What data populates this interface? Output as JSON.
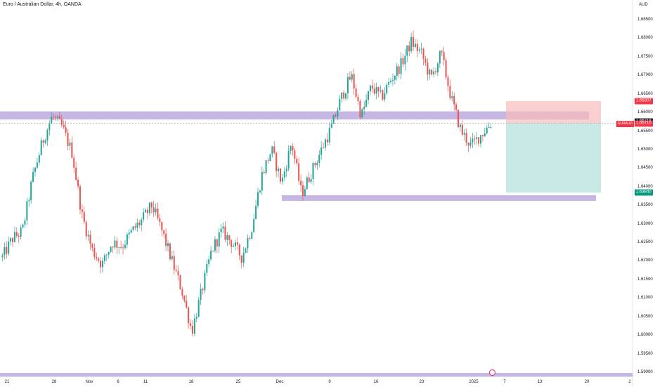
{
  "title": "Euro / Australian Dollar, 4h, OANDA",
  "currency": "AUD",
  "symbol": "EURAUD",
  "timer": "02:24:49",
  "price_ticks": [
    "1.68500",
    "1.68000",
    "1.67500",
    "1.67000",
    "1.66500",
    "1.66000",
    "1.65500",
    "1.65000",
    "1.64500",
    "1.64000",
    "1.63500",
    "1.63000",
    "1.62500",
    "1.62000",
    "1.61500",
    "1.61000",
    "1.60500",
    "1.60000",
    "1.59500",
    "1.59000"
  ],
  "badges": {
    "stop": "1.66307",
    "last": "1.65718",
    "entry": "1.65710",
    "target": "1.63840"
  },
  "time_ticks": [
    "21",
    "28",
    "Nov",
    "6",
    "11",
    "18",
    "25",
    "Dec",
    "9",
    "16",
    "23",
    "2025",
    "7",
    "13",
    "20",
    "2"
  ],
  "colors": {
    "up": "#26a69a",
    "down": "#ef5350",
    "zone": "#b39ddb",
    "stop_zone": "#f8bbbc",
    "target_zone": "#b2dfdb",
    "badge_red": "#f23645",
    "badge_teal": "#089981",
    "badge_dark": "#131722"
  },
  "chart_data": {
    "type": "candlestick",
    "title": "Euro / Australian Dollar, 4h, OANDA",
    "y_unit": "AUD",
    "ylim": [
      1.5885,
      1.6895
    ],
    "grid": false,
    "path": [
      [
        "21",
        1.621
      ],
      [
        "23",
        1.626
      ],
      [
        "25",
        1.628
      ],
      [
        "27",
        1.642
      ],
      [
        "29",
        1.652
      ],
      [
        "31",
        1.659
      ],
      [
        "Nov 1",
        1.656
      ],
      [
        "Nov 4",
        1.649
      ],
      [
        "Nov 5",
        1.632
      ],
      [
        "Nov 7",
        1.623
      ],
      [
        "Nov 8",
        1.619
      ],
      [
        "Nov 11",
        1.625
      ],
      [
        "Nov 13",
        1.624
      ],
      [
        "Nov 15",
        1.628
      ],
      [
        "Nov 18",
        1.631
      ],
      [
        "Nov 19",
        1.635
      ],
      [
        "Nov 20",
        1.628
      ],
      [
        "Nov 22",
        1.62
      ],
      [
        "Nov 24",
        1.612
      ],
      [
        "Nov 25",
        1.601
      ],
      [
        "Nov 26",
        1.612
      ],
      [
        "Nov 28",
        1.623
      ],
      [
        "Dec 1",
        1.628
      ],
      [
        "Dec 3",
        1.625
      ],
      [
        "Dec 4",
        1.621
      ],
      [
        "Dec 6",
        1.629
      ],
      [
        "Dec 7",
        1.643
      ],
      [
        "Dec 8",
        1.65
      ],
      [
        "Dec 9",
        1.641
      ],
      [
        "Dec 10",
        1.652
      ],
      [
        "Dec 11",
        1.638
      ],
      [
        "Dec 12",
        1.644
      ],
      [
        "Dec 14",
        1.65
      ],
      [
        "Dec 15",
        1.656
      ],
      [
        "Dec 16",
        1.664
      ],
      [
        "Dec 17",
        1.67
      ],
      [
        "Dec 18",
        1.659
      ],
      [
        "Dec 19",
        1.667
      ],
      [
        "Dec 20",
        1.664
      ],
      [
        "Dec 23",
        1.669
      ],
      [
        "Dec 24",
        1.673
      ],
      [
        "Dec 25",
        1.679
      ],
      [
        "Dec 26",
        1.676
      ],
      [
        "Dec 27",
        1.669
      ],
      [
        "Dec 28",
        1.676
      ],
      [
        "Dec 30",
        1.664
      ],
      [
        "Dec 31",
        1.655
      ],
      [
        "2025",
        1.651
      ],
      [
        "Jan 2",
        1.654
      ],
      [
        "Jan 3",
        1.657
      ]
    ],
    "zones": [
      {
        "from": 1.6581,
        "to": 1.6603
      },
      {
        "from": 1.6363,
        "to": 1.6377
      },
      {
        "from": 1.5885,
        "to": 1.5898
      }
    ],
    "position": {
      "type": "short",
      "entry": 1.6571,
      "stop": 1.66307,
      "target": 1.6384
    }
  }
}
